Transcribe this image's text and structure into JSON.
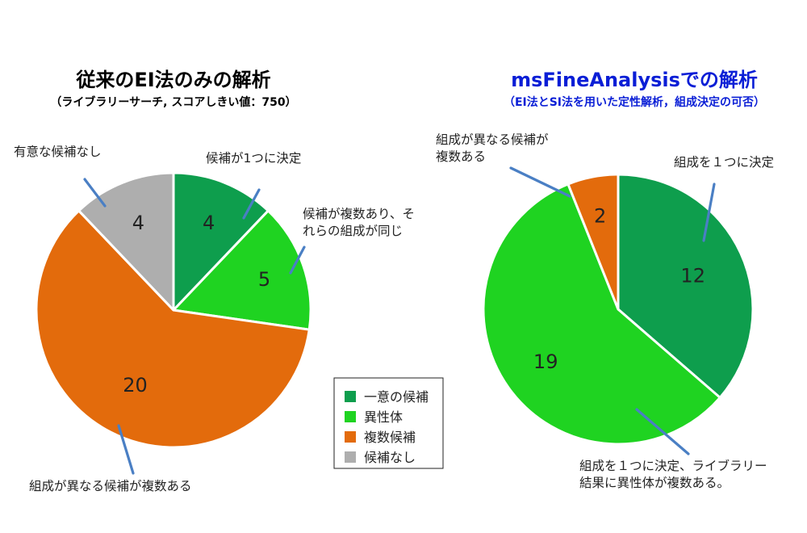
{
  "chart_data": [
    {
      "type": "pie",
      "title": "従来のEI法のみの解析",
      "subtitle": "（ライブラリーサーチ, スコアしきい値：750）",
      "categories": [
        "一意の候補",
        "異性体",
        "複数候補",
        "候補なし"
      ],
      "values": [
        4,
        5,
        20,
        4
      ],
      "annotations": [
        [
          "候補が1つに決定"
        ],
        [
          "候補が複数あり、そ",
          "れらの組成が同じ"
        ],
        [
          "組成が異なる候補が複数ある"
        ],
        [
          "有意な候補なし"
        ]
      ]
    },
    {
      "type": "pie",
      "title": "msFineAnalysisでの解析",
      "subtitle": "（EI法とSI法を用いた定性解析，組成決定の可否）",
      "categories": [
        "一意の候補",
        "異性体",
        "複数候補"
      ],
      "values": [
        12,
        19,
        2
      ],
      "annotations": [
        [
          "組成を１つに決定"
        ],
        [
          "組成を１つに決定、ライブラリー",
          "結果に異性体が複数ある。"
        ],
        [
          "組成が異なる候補が",
          "複数ある"
        ]
      ]
    }
  ],
  "legend": {
    "items": [
      {
        "label": "一意の候補",
        "color": "#0e9e4d"
      },
      {
        "label": "異性体",
        "color": "#1fd321"
      },
      {
        "label": "複数候補",
        "color": "#e36b0c"
      },
      {
        "label": "候補なし",
        "color": "#aeaeae"
      }
    ]
  },
  "colors": {
    "left_title": "#000000",
    "right_title": "#0a1ed6",
    "pointer": "#4a7fc4"
  }
}
